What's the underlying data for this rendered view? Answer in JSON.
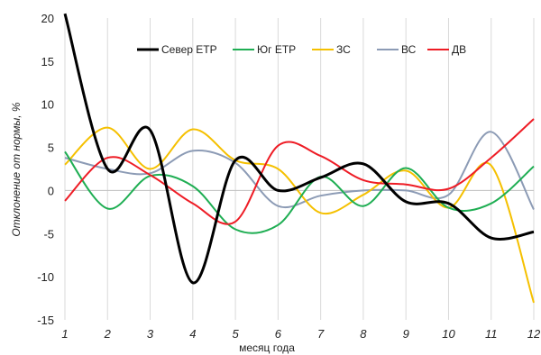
{
  "chart_data": {
    "type": "line",
    "smooth": true,
    "xlabel": "месяц года",
    "ylabel": "Отклонение от нормы, %",
    "x": [
      1,
      2,
      3,
      4,
      5,
      6,
      7,
      8,
      9,
      10,
      11,
      12
    ],
    "xlim": [
      1,
      12
    ],
    "ylim": [
      -15,
      20
    ],
    "yticks": [
      -15,
      -10,
      -5,
      0,
      5,
      10,
      15,
      20
    ],
    "grid": "vertical",
    "legend": "top",
    "series": [
      {
        "name": "Север ЕТР",
        "color": "#000000",
        "values": [
          20.5,
          2.5,
          7.0,
          -10.7,
          3.5,
          0.0,
          1.5,
          3.1,
          -1.3,
          -1.5,
          -5.5,
          -4.8
        ]
      },
      {
        "name": "Юг ЕТР",
        "color": "#1fae53",
        "values": [
          4.5,
          -2.1,
          1.7,
          0.5,
          -4.5,
          -4.0,
          1.6,
          -1.8,
          2.6,
          -2.0,
          -1.5,
          2.8
        ]
      },
      {
        "name": "ЗС",
        "color": "#f5c000",
        "values": [
          3.0,
          7.3,
          2.5,
          7.1,
          3.5,
          2.5,
          -2.6,
          -0.5,
          2.3,
          -2.0,
          2.9,
          -13.0
        ]
      },
      {
        "name": "ВС",
        "color": "#8c9bb5",
        "values": [
          3.8,
          2.5,
          2.0,
          4.6,
          3.2,
          -1.8,
          -0.6,
          0.0,
          0.0,
          -0.5,
          6.8,
          -2.2
        ]
      },
      {
        "name": "ДВ",
        "color": "#ee1c25",
        "values": [
          -1.2,
          3.8,
          1.8,
          -1.5,
          -3.6,
          5.2,
          4.0,
          1.2,
          0.7,
          0.2,
          3.8,
          8.3
        ]
      }
    ]
  }
}
